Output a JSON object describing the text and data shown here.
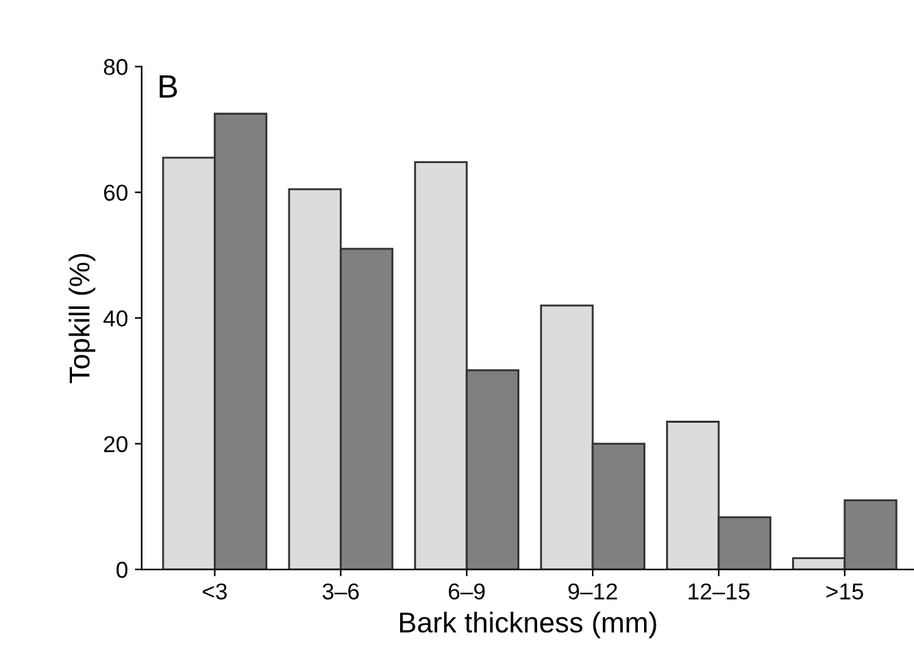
{
  "chart_data": {
    "type": "bar",
    "xlabel": "Bark thickness (mm)",
    "ylabel": "Topkill (%)",
    "annotations": [
      "B"
    ],
    "categories": [
      "<3",
      "3–6",
      "6–9",
      "9–12",
      "12–15",
      ">15"
    ],
    "series": [
      {
        "color": "#dcdcdc",
        "values": [
          65.5,
          60.5,
          64.8,
          42,
          23.5,
          1.8
        ]
      },
      {
        "color": "#808080",
        "values": [
          72.5,
          51,
          31.7,
          20,
          8.3,
          11
        ]
      }
    ],
    "ylim": [
      0,
      80
    ],
    "yticks": [
      0,
      20,
      40,
      60,
      80
    ]
  }
}
